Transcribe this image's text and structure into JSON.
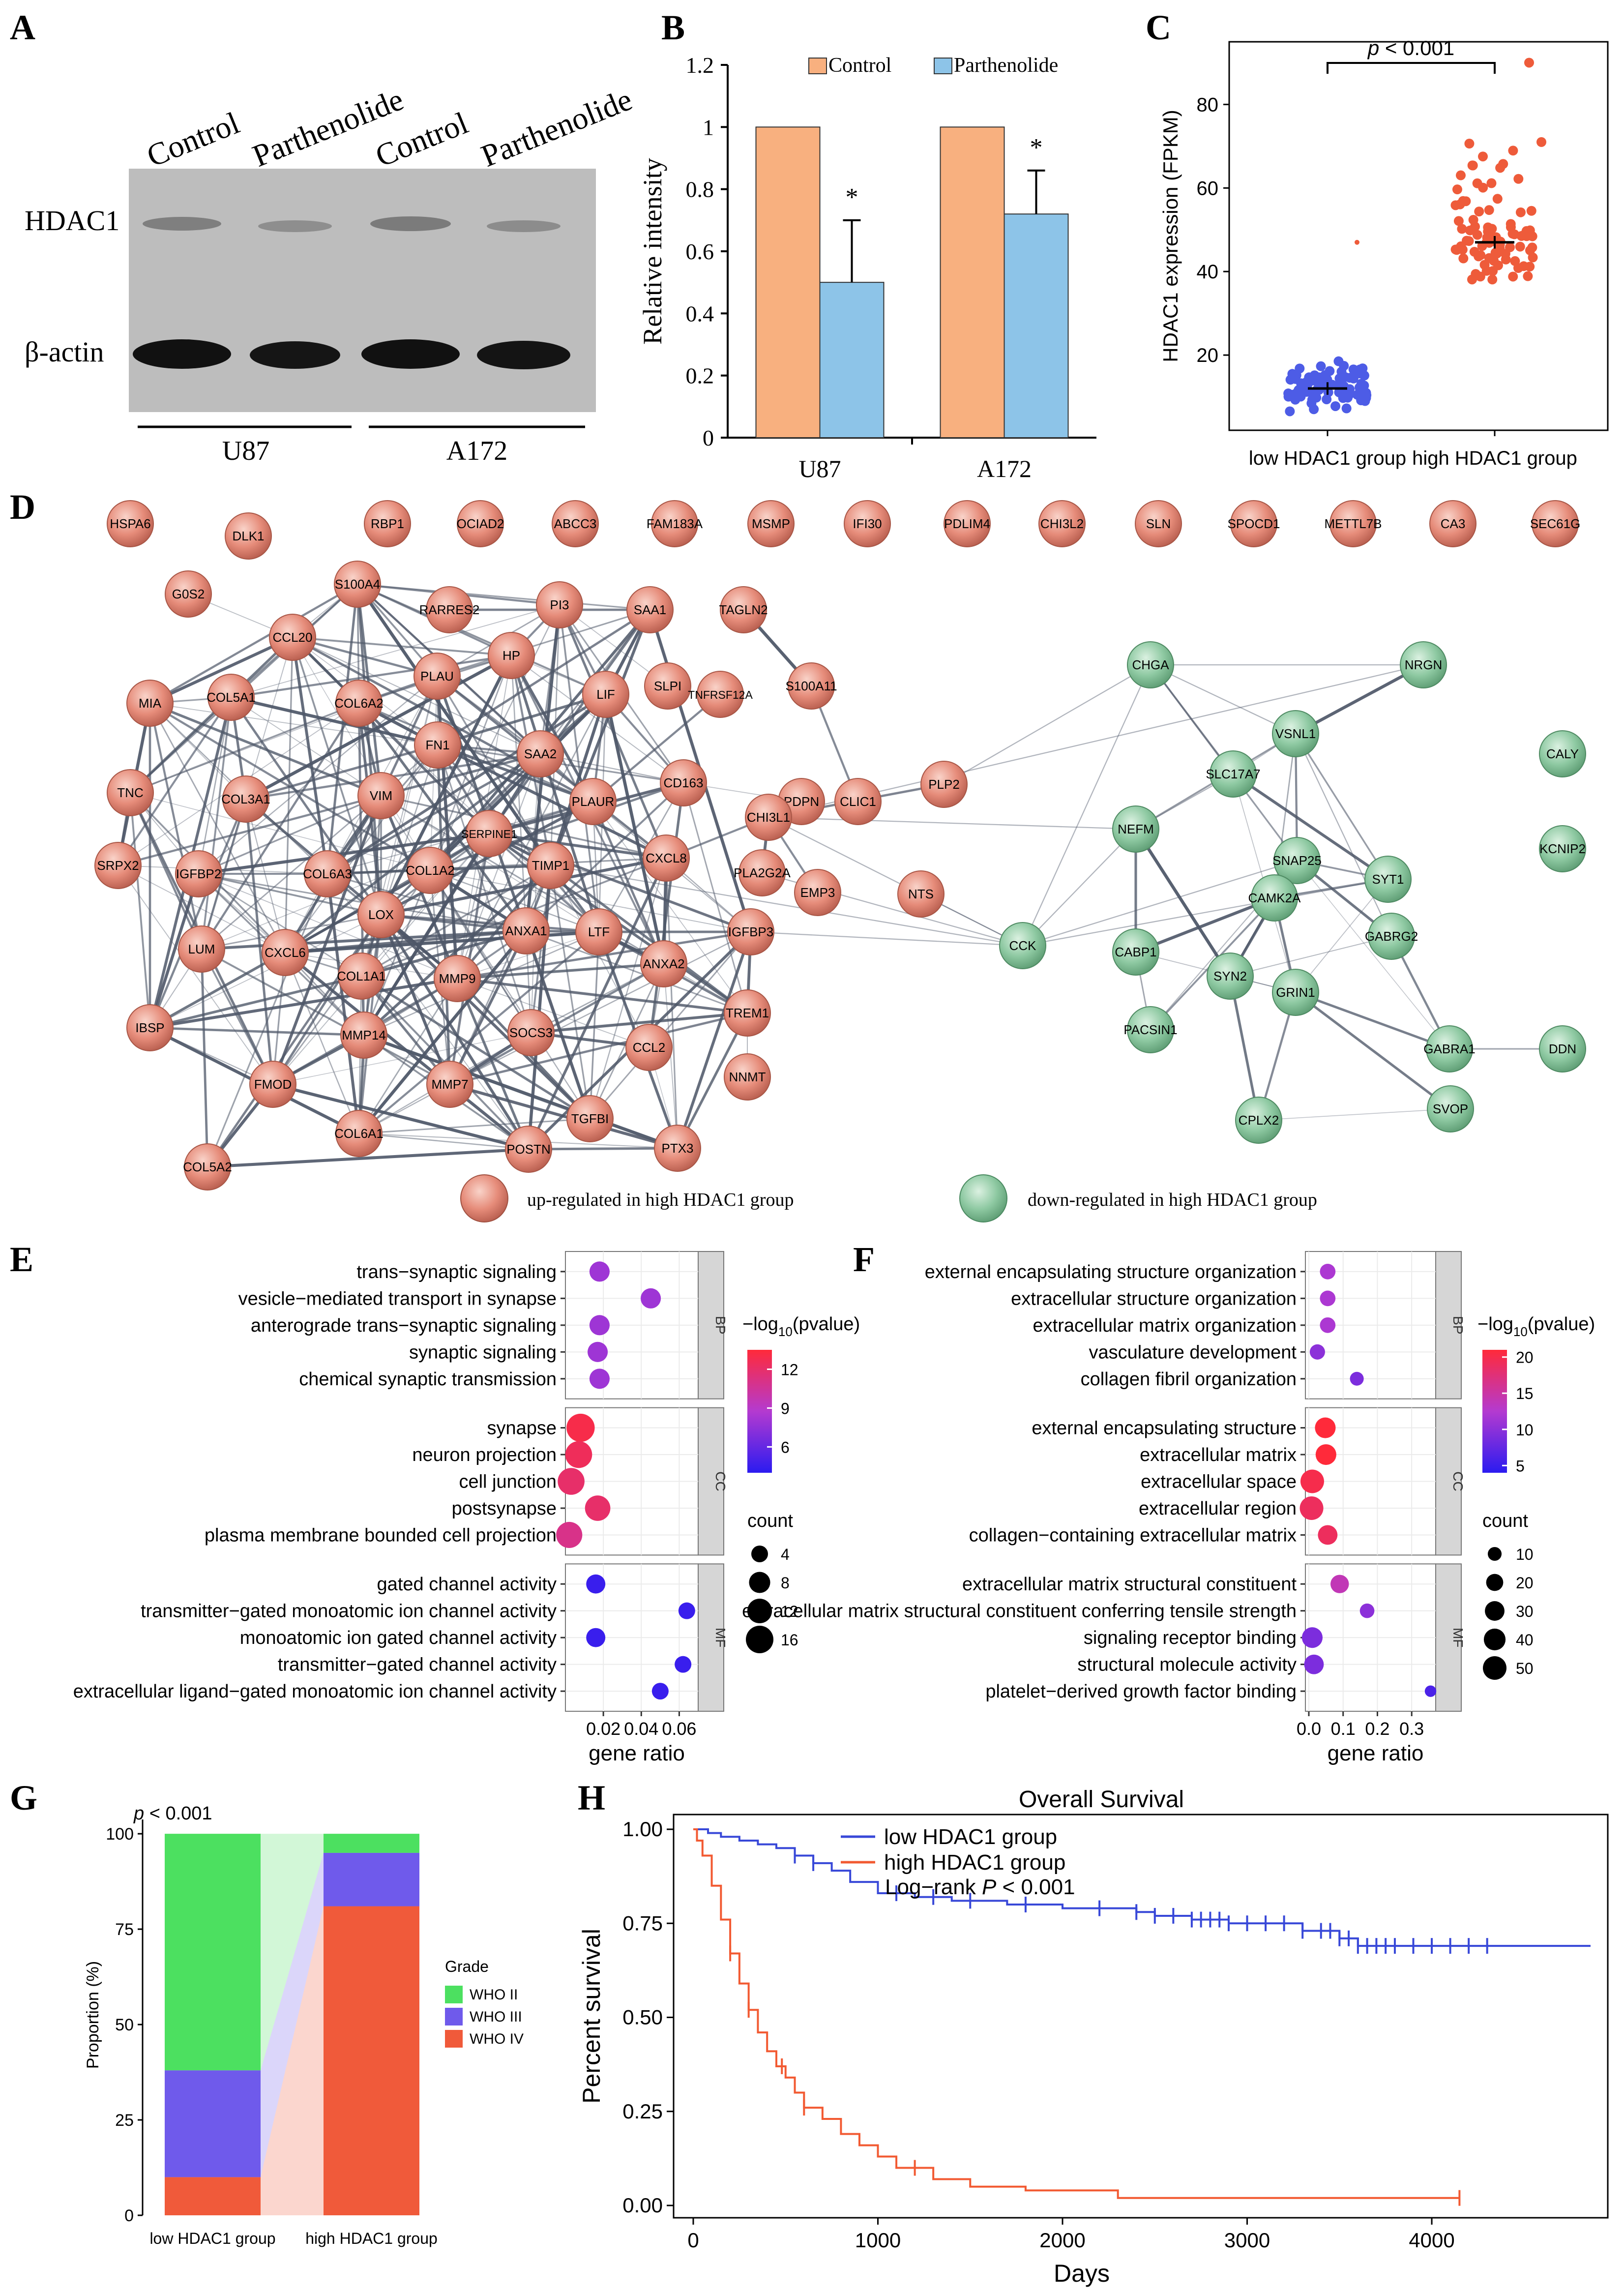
{
  "panel_letters": [
    "A",
    "B",
    "C",
    "D",
    "E",
    "F",
    "G",
    "H"
  ],
  "panelA": {
    "lane_labels": [
      "Control",
      "Parthenolide",
      "Control",
      "Parthenolide"
    ],
    "row_labels": [
      "HDAC1",
      "β-actin"
    ],
    "cell_lines": [
      "U87",
      "A172"
    ]
  },
  "colors": {
    "control": "#F8B07F",
    "parthenolide": "#8DC4E8",
    "low_dot": "#4D5CE6",
    "high_dot": "#EE5B3A",
    "up_node": "#E78A7A",
    "down_node": "#8FC9A3",
    "who2": "#4CE060",
    "who3": "#6F5AEB",
    "who4": "#F05A3A",
    "km_low": "#3848D8",
    "km_high": "#F25A32"
  },
  "chart_data": [
    {
      "panel": "B",
      "type": "bar",
      "categories": [
        "U87",
        "A172"
      ],
      "series": [
        {
          "name": "Control",
          "values": [
            1,
            1
          ],
          "errors": [
            0,
            0
          ]
        },
        {
          "name": "Parthenolide",
          "values": [
            0.5,
            0.72
          ],
          "errors": [
            0.2,
            0.14
          ]
        }
      ],
      "significance": [
        "*",
        "*"
      ],
      "ylabel": "Relative intensity",
      "ylim": [
        0,
        1.2
      ],
      "yticks": [
        "0",
        "0.2",
        "0.4",
        "0.6",
        "0.8",
        "1",
        "1.2"
      ]
    },
    {
      "panel": "C",
      "type": "scatter",
      "categories": [
        "low HDAC1 group",
        "high HDAC1 group"
      ],
      "means": [
        12,
        47
      ],
      "ranges": [
        [
          5,
          21
        ],
        [
          38,
          91
        ]
      ],
      "outliers": [
        47,
        90,
        71
      ],
      "ylabel": "HDAC1 expression (FPKM)",
      "yticks": [
        "20",
        "40",
        "60",
        "80"
      ],
      "pvalue_text": "< 0.001",
      "p_symbol": "p"
    },
    {
      "panel": "E",
      "type": "scatter",
      "title_legend": "−log",
      "legend_sub": "10",
      "legend_tail": "(pvalue)",
      "color_ticks": [
        "12",
        "9",
        "6"
      ],
      "count_label": "count",
      "count_ticks": [
        "4",
        "8",
        "12",
        "16"
      ],
      "xlabel": "gene ratio",
      "xticks": [
        "0.02",
        "0.04",
        "0.06"
      ],
      "xlim": [
        0,
        0.07
      ],
      "groups": [
        {
          "name": "BP",
          "terms": [
            {
              "label": "trans−synaptic signaling",
              "ratio": 0.018,
              "logp": 8,
              "count": 7
            },
            {
              "label": "vesicle−mediated transport in synapse",
              "ratio": 0.045,
              "logp": 8,
              "count": 7
            },
            {
              "label": "anterograde trans−synaptic signaling",
              "ratio": 0.018,
              "logp": 8,
              "count": 7
            },
            {
              "label": "synaptic signaling",
              "ratio": 0.017,
              "logp": 8,
              "count": 7
            },
            {
              "label": "chemical synaptic transmission",
              "ratio": 0.018,
              "logp": 8,
              "count": 7
            }
          ]
        },
        {
          "name": "CC",
          "terms": [
            {
              "label": "synapse",
              "ratio": 0.008,
              "logp": 13,
              "count": 17
            },
            {
              "label": "neuron projection",
              "ratio": 0.007,
              "logp": 12.5,
              "count": 15
            },
            {
              "label": "cell junction",
              "ratio": 0.003,
              "logp": 12,
              "count": 15
            },
            {
              "label": "postsynapse",
              "ratio": 0.017,
              "logp": 12,
              "count": 13
            },
            {
              "label": "plasma membrane bounded cell projection",
              "ratio": 0.002,
              "logp": 11,
              "count": 14
            }
          ]
        },
        {
          "name": "MF",
          "terms": [
            {
              "label": "gated channel activity",
              "ratio": 0.016,
              "logp": 4.5,
              "count": 6
            },
            {
              "label": "transmitter−gated monoatomic ion channel activity",
              "ratio": 0.064,
              "logp": 4.5,
              "count": 4
            },
            {
              "label": "monoatomic ion gated channel activity",
              "ratio": 0.016,
              "logp": 4.5,
              "count": 6
            },
            {
              "label": "transmitter−gated channel activity",
              "ratio": 0.062,
              "logp": 4.5,
              "count": 4
            },
            {
              "label": "extracellular ligand−gated monoatomic ion channel activity",
              "ratio": 0.05,
              "logp": 4.5,
              "count": 4
            }
          ]
        }
      ]
    },
    {
      "panel": "F",
      "type": "scatter",
      "title_legend": "−log",
      "legend_sub": "10",
      "legend_tail": "(pvalue)",
      "color_ticks": [
        "20",
        "15",
        "10",
        "5"
      ],
      "count_label": "count",
      "count_ticks": [
        "10",
        "20",
        "30",
        "40",
        "50"
      ],
      "xlabel": "gene ratio",
      "xticks": [
        "0.0",
        "0.1",
        "0.2",
        "0.3"
      ],
      "xlim": [
        -0.01,
        0.37
      ],
      "groups": [
        {
          "name": "BP",
          "terms": [
            {
              "label": "external encapsulating structure organization",
              "ratio": 0.055,
              "logp": 12,
              "count": 15
            },
            {
              "label": "extracellular structure organization",
              "ratio": 0.055,
              "logp": 12,
              "count": 15
            },
            {
              "label": "extracellular matrix organization",
              "ratio": 0.055,
              "logp": 12,
              "count": 15
            },
            {
              "label": "vasculature development",
              "ratio": 0.025,
              "logp": 10,
              "count": 14
            },
            {
              "label": "collagen fibril organization",
              "ratio": 0.14,
              "logp": 9,
              "count": 10
            }
          ]
        },
        {
          "name": "CC",
          "terms": [
            {
              "label": "external encapsulating structure",
              "ratio": 0.048,
              "logp": 21,
              "count": 35
            },
            {
              "label": "extracellular matrix",
              "ratio": 0.05,
              "logp": 21,
              "count": 35
            },
            {
              "label": "extracellular space",
              "ratio": 0.01,
              "logp": 20,
              "count": 50
            },
            {
              "label": "extracellular region",
              "ratio": 0.008,
              "logp": 19,
              "count": 50
            },
            {
              "label": "collagen−containing extracellular matrix",
              "ratio": 0.055,
              "logp": 19,
              "count": 30
            }
          ]
        },
        {
          "name": "MF",
          "terms": [
            {
              "label": "extracellular matrix structural constituent",
              "ratio": 0.09,
              "logp": 14,
              "count": 25
            },
            {
              "label": "extracellular matrix structural constituent conferring tensile strength",
              "ratio": 0.17,
              "logp": 10,
              "count": 12
            },
            {
              "label": "signaling receptor binding",
              "ratio": 0.01,
              "logp": 9,
              "count": 35
            },
            {
              "label": "structural molecule activity",
              "ratio": 0.015,
              "logp": 9,
              "count": 30
            },
            {
              "label": "platelet−derived growth factor binding",
              "ratio": 0.355,
              "logp": 6,
              "count": 5
            }
          ]
        }
      ]
    },
    {
      "panel": "G",
      "type": "bar",
      "categories": [
        "low HDAC1 group",
        "high HDAC1 group"
      ],
      "series": [
        {
          "name": "WHO II",
          "values": [
            62,
            5
          ]
        },
        {
          "name": "WHO III",
          "values": [
            28,
            14
          ]
        },
        {
          "name": "WHO IV",
          "values": [
            10,
            81
          ]
        }
      ],
      "ylabel": "Proportion (%)",
      "ylim": [
        0,
        100
      ],
      "yticks": [
        "0",
        "25",
        "50",
        "75",
        "100"
      ],
      "legend_title": "Grade",
      "p_symbol": "p",
      "pvalue_text": "< 0.001"
    },
    {
      "panel": "H",
      "type": "line",
      "title": "Overall Survival",
      "xlabel": "Days",
      "ylabel": "Percent survival",
      "xlim": [
        0,
        4900
      ],
      "ylim": [
        0,
        1
      ],
      "xticks": [
        "0",
        "1000",
        "2000",
        "3000",
        "4000"
      ],
      "yticks": [
        "0.00",
        "0.25",
        "0.50",
        "0.75",
        "1.00"
      ],
      "legend": [
        "low HDAC1 group",
        "high HDAC1 group"
      ],
      "logrank_text": "Log−rank ",
      "logrank_P": "P",
      "logrank_tail": " < 0.001",
      "series": [
        {
          "name": "low HDAC1 group",
          "x": [
            0,
            80,
            150,
            250,
            350,
            450,
            550,
            650,
            750,
            850,
            1000,
            1200,
            1400,
            1700,
            2000,
            2400,
            2500,
            2700,
            2900,
            3100,
            3300,
            3500,
            3600,
            4200,
            4860
          ],
          "y": [
            1.0,
            0.99,
            0.98,
            0.97,
            0.96,
            0.95,
            0.93,
            0.91,
            0.89,
            0.86,
            0.83,
            0.82,
            0.81,
            0.8,
            0.79,
            0.78,
            0.77,
            0.76,
            0.75,
            0.75,
            0.73,
            0.71,
            0.69,
            0.69,
            0.69
          ],
          "censor_x": [
            550,
            650,
            1100,
            1300,
            1500,
            1800,
            2200,
            2400,
            2500,
            2600,
            2700,
            2750,
            2800,
            2850,
            2900,
            3000,
            3100,
            3200,
            3300,
            3400,
            3450,
            3500,
            3550,
            3600,
            3650,
            3700,
            3750,
            3800,
            3900,
            4000,
            4100,
            4200,
            4300
          ]
        },
        {
          "name": "high HDAC1 group",
          "x": [
            0,
            20,
            50,
            100,
            150,
            200,
            250,
            300,
            350,
            400,
            450,
            500,
            550,
            600,
            700,
            800,
            900,
            1000,
            1100,
            1300,
            1500,
            1800,
            2300,
            4150
          ],
          "y": [
            1.0,
            0.97,
            0.93,
            0.85,
            0.76,
            0.67,
            0.59,
            0.52,
            0.46,
            0.41,
            0.37,
            0.34,
            0.3,
            0.26,
            0.23,
            0.19,
            0.16,
            0.13,
            0.1,
            0.07,
            0.05,
            0.04,
            0.02,
            0.02
          ],
          "censor_x": [
            200,
            300,
            480,
            600,
            1200,
            4150
          ]
        }
      ]
    }
  ],
  "network": {
    "nodes": [
      {
        "id": "HSPA6",
        "g": "up"
      },
      {
        "id": "DLK1",
        "g": "up"
      },
      {
        "id": "RBP1",
        "g": "up"
      },
      {
        "id": "OCIAD2",
        "g": "up"
      },
      {
        "id": "ABCC3",
        "g": "up"
      },
      {
        "id": "FAM183A",
        "g": "up"
      },
      {
        "id": "MSMP",
        "g": "up"
      },
      {
        "id": "IFI30",
        "g": "up"
      },
      {
        "id": "PDLIM4",
        "g": "up"
      },
      {
        "id": "CHI3L2",
        "g": "up"
      },
      {
        "id": "SLN",
        "g": "up"
      },
      {
        "id": "SPOCD1",
        "g": "up"
      },
      {
        "id": "METTL7B",
        "g": "up"
      },
      {
        "id": "CA3",
        "g": "up"
      },
      {
        "id": "SEC61G",
        "g": "up"
      },
      {
        "id": "G0S2",
        "g": "up"
      },
      {
        "id": "S100A4",
        "g": "up"
      },
      {
        "id": "RARRES2",
        "g": "up"
      },
      {
        "id": "PI3",
        "g": "up"
      },
      {
        "id": "SAA1",
        "g": "up"
      },
      {
        "id": "TAGLN2",
        "g": "up"
      },
      {
        "id": "CCL20",
        "g": "up"
      },
      {
        "id": "HP",
        "g": "up"
      },
      {
        "id": "PLAU",
        "g": "up"
      },
      {
        "id": "MIA",
        "g": "up"
      },
      {
        "id": "COL5A1",
        "g": "up"
      },
      {
        "id": "COL6A2",
        "g": "up"
      },
      {
        "id": "LIF",
        "g": "up"
      },
      {
        "id": "SLPI",
        "g": "up"
      },
      {
        "id": "TNFRSF12A",
        "g": "up"
      },
      {
        "id": "S100A11",
        "g": "up"
      },
      {
        "id": "FN1",
        "g": "up"
      },
      {
        "id": "SAA2",
        "g": "up"
      },
      {
        "id": "CD163",
        "g": "up"
      },
      {
        "id": "PDPN",
        "g": "up"
      },
      {
        "id": "CLIC1",
        "g": "up"
      },
      {
        "id": "PLP2",
        "g": "up"
      },
      {
        "id": "TNC",
        "g": "up"
      },
      {
        "id": "COL3A1",
        "g": "up"
      },
      {
        "id": "VIM",
        "g": "up"
      },
      {
        "id": "PLAUR",
        "g": "up"
      },
      {
        "id": "CHI3L1",
        "g": "up"
      },
      {
        "id": "SERPINE1",
        "g": "up"
      },
      {
        "id": "SRPX2",
        "g": "up"
      },
      {
        "id": "IGFBP2",
        "g": "up"
      },
      {
        "id": "COL6A3",
        "g": "up"
      },
      {
        "id": "COL1A2",
        "g": "up"
      },
      {
        "id": "TIMP1",
        "g": "up"
      },
      {
        "id": "CXCL8",
        "g": "up"
      },
      {
        "id": "PLA2G2A",
        "g": "up"
      },
      {
        "id": "NTS",
        "g": "up"
      },
      {
        "id": "EMP3",
        "g": "up"
      },
      {
        "id": "LOX",
        "g": "up"
      },
      {
        "id": "LUM",
        "g": "up"
      },
      {
        "id": "CXCL6",
        "g": "up"
      },
      {
        "id": "ANXA1",
        "g": "up"
      },
      {
        "id": "LTF",
        "g": "up"
      },
      {
        "id": "IGFBP3",
        "g": "up"
      },
      {
        "id": "COL1A1",
        "g": "up"
      },
      {
        "id": "ANXA2",
        "g": "up"
      },
      {
        "id": "MMP9",
        "g": "up"
      },
      {
        "id": "IBSP",
        "g": "up"
      },
      {
        "id": "MMP14",
        "g": "up"
      },
      {
        "id": "SOCS3",
        "g": "up"
      },
      {
        "id": "TREM1",
        "g": "up"
      },
      {
        "id": "FMOD",
        "g": "up"
      },
      {
        "id": "CCL2",
        "g": "up"
      },
      {
        "id": "MMP7",
        "g": "up"
      },
      {
        "id": "NNMT",
        "g": "up"
      },
      {
        "id": "COL6A1",
        "g": "up"
      },
      {
        "id": "TGFBI",
        "g": "up"
      },
      {
        "id": "POSTN",
        "g": "up"
      },
      {
        "id": "PTX3",
        "g": "up"
      },
      {
        "id": "COL5A2",
        "g": "up"
      },
      {
        "id": "CHGA",
        "g": "down"
      },
      {
        "id": "NRGN",
        "g": "down"
      },
      {
        "id": "VSNL1",
        "g": "down"
      },
      {
        "id": "SLC17A7",
        "g": "down"
      },
      {
        "id": "CALY",
        "g": "down"
      },
      {
        "id": "NEFM",
        "g": "down"
      },
      {
        "id": "SNAP25",
        "g": "down"
      },
      {
        "id": "SYT1",
        "g": "down"
      },
      {
        "id": "KCNIP2",
        "g": "down"
      },
      {
        "id": "CAMK2A",
        "g": "down"
      },
      {
        "id": "CCK",
        "g": "down"
      },
      {
        "id": "CABP1",
        "g": "down"
      },
      {
        "id": "GABRG2",
        "g": "down"
      },
      {
        "id": "SYN2",
        "g": "down"
      },
      {
        "id": "GRIN1",
        "g": "down"
      },
      {
        "id": "PACSIN1",
        "g": "down"
      },
      {
        "id": "GABRA1",
        "g": "down"
      },
      {
        "id": "DDN",
        "g": "down"
      },
      {
        "id": "CPLX2",
        "g": "down"
      },
      {
        "id": "SVOP",
        "g": "down"
      }
    ],
    "legend_up": "up-regulated in high HDAC1 group",
    "legend_down": "down-regulated in high HDAC1 group"
  }
}
